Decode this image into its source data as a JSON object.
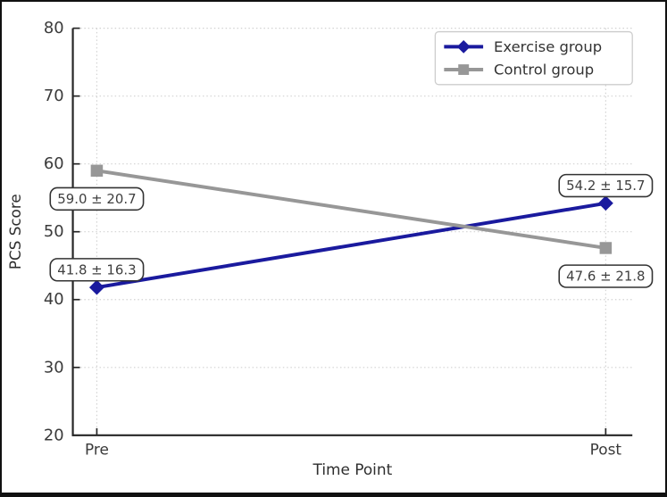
{
  "chart_data": {
    "type": "line",
    "title": "",
    "xlabel": "Time Point",
    "ylabel": "PCS Score",
    "categories": [
      "Pre",
      "Post"
    ],
    "ylim": [
      20,
      80
    ],
    "yticks": [
      20,
      30,
      40,
      50,
      60,
      70,
      80
    ],
    "grid": true,
    "legend_position": "upper right",
    "series": [
      {
        "name": "Exercise group",
        "values": [
          41.8,
          54.2
        ],
        "sd": [
          16.3,
          15.7
        ],
        "point_labels": [
          "41.8 ± 16.3",
          "54.2 ± 15.7"
        ],
        "label_side": "above",
        "color": "#1a1a9e",
        "marker": "diamond"
      },
      {
        "name": "Control group",
        "values": [
          59.0,
          47.6
        ],
        "sd": [
          20.7,
          21.8
        ],
        "point_labels": [
          "59.0 ± 20.7",
          "47.6 ± 21.8"
        ],
        "label_side": "below",
        "color": "#979797",
        "marker": "square"
      }
    ]
  },
  "colors": {
    "background": "#ffffff",
    "frame_border": "#111111",
    "axis": "#262626",
    "tick_label": "#3a3a3a",
    "axis_label": "#2e2e2e",
    "grid": "#d2d2d2",
    "annotation_bg": "#ffffff",
    "annotation_border": "#333333",
    "annotation_text": "#3f3f3f",
    "legend_bg": "#ffffff",
    "legend_border": "#cccccc",
    "legend_text": "#333333"
  }
}
